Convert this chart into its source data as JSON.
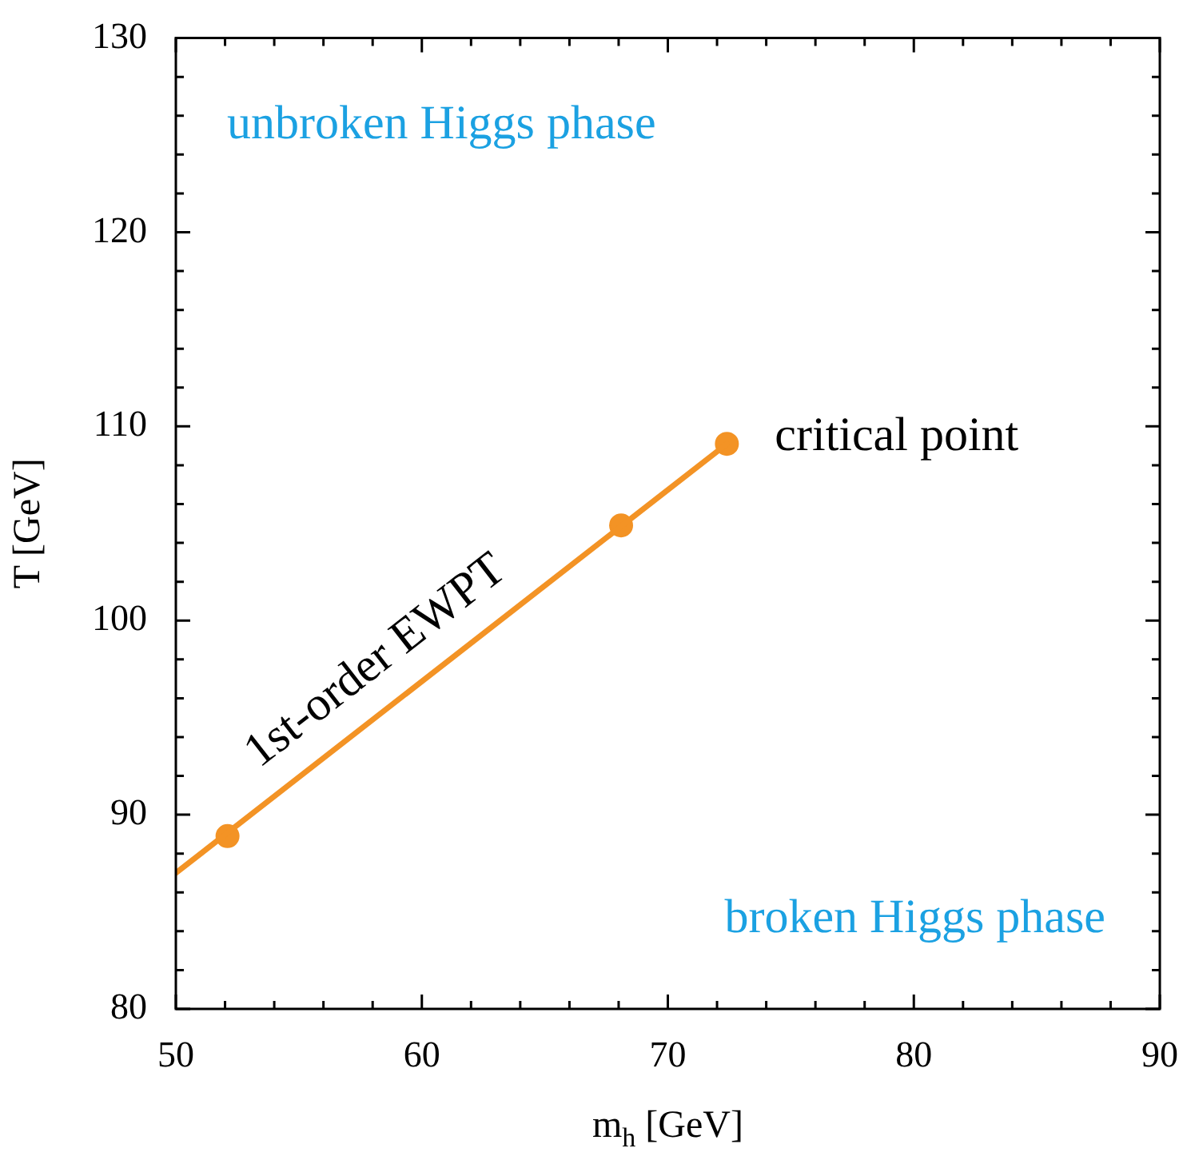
{
  "chart_data": {
    "type": "line",
    "xlabel": "m$_{h}$ [GeV]",
    "ylabel": "T [GeV]",
    "xlim": [
      50,
      90
    ],
    "ylim": [
      80,
      130
    ],
    "xticks": [
      50,
      {
        "value": 52,
        "label": null
      },
      {
        "value": 54,
        "label": null
      },
      {
        "value": 56,
        "label": null
      },
      {
        "value": 58,
        "label": null
      },
      60,
      {
        "value": 62,
        "label": null
      },
      {
        "value": 64,
        "label": null
      },
      {
        "value": 66,
        "label": null
      },
      {
        "value": 68,
        "label": null
      },
      70,
      {
        "value": 72,
        "label": null
      },
      {
        "value": 74,
        "label": null
      },
      {
        "value": 76,
        "label": null
      },
      {
        "value": 78,
        "label": null
      },
      80,
      {
        "value": 82,
        "label": null
      },
      {
        "value": 84,
        "label": null
      },
      {
        "value": 86,
        "label": null
      },
      {
        "value": 88,
        "label": null
      },
      90
    ],
    "yticks": [
      80,
      {
        "value": 82,
        "label": null
      },
      {
        "value": 84,
        "label": null
      },
      {
        "value": 86,
        "label": null
      },
      {
        "value": 88,
        "label": null
      },
      90,
      {
        "value": 92,
        "label": null
      },
      {
        "value": 94,
        "label": null
      },
      {
        "value": 96,
        "label": null
      },
      {
        "value": 98,
        "label": null
      },
      100,
      {
        "value": 102,
        "label": null
      },
      {
        "value": 104,
        "label": null
      },
      {
        "value": 106,
        "label": null
      },
      {
        "value": 108,
        "label": null
      },
      110,
      {
        "value": 112,
        "label": null
      },
      {
        "value": 114,
        "label": null
      },
      {
        "value": 116,
        "label": null
      },
      {
        "value": 118,
        "label": null
      },
      120,
      {
        "value": 122,
        "label": null
      },
      {
        "value": 124,
        "label": null
      },
      {
        "value": 126,
        "label": null
      },
      {
        "value": 128,
        "label": null
      },
      130
    ],
    "series": [
      {
        "type": "line",
        "color": "#f39325",
        "x": [
          50,
          72.4
        ],
        "values": [
          87.0,
          109.1
        ],
        "marker": "none"
      },
      {
        "type": "scatter",
        "color": "#f39325",
        "x": [
          52.1,
          68.1,
          72.4
        ],
        "values": [
          88.9,
          104.9,
          109.1
        ],
        "marker": "circle"
      }
    ],
    "annotations": [
      "unbroken Higgs phase",
      "broken Higgs phase",
      {
        "text": "critical point",
        "x": 72.4,
        "y": 109.1
      },
      {
        "text": "1st-order EWPT",
        "x": 59.3,
        "y": 96.0
      }
    ],
    "grid": false,
    "legend": false
  }
}
